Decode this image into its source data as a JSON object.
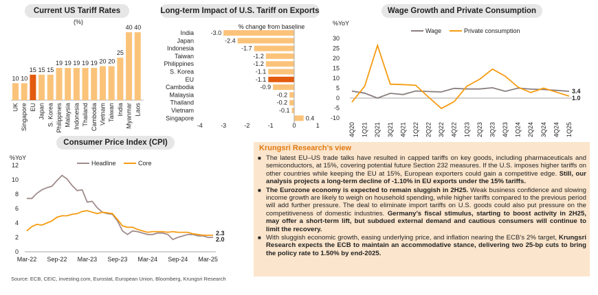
{
  "tariff": {
    "title": "Current US Tariff Rates",
    "unit": "(%)"
  },
  "impact": {
    "title": "Long-term Impact of U.S. Tariff on Exports",
    "subtitle": "% change from baseline"
  },
  "wage": {
    "title": "Wage Growth and Private Consumption",
    "yunit": "%YoY"
  },
  "cpi": {
    "title": "Consumer Price Index (CPI)",
    "yunit": "%YoY"
  },
  "view": {
    "title": "Krungsri Research’s view",
    "b1": "The latest EU–US trade talks have resulted in capped tariffs on key goods, including pharmaceuticals and semiconductors, at 15%, covering potential future Section 232 measures. If the U.S. imposes higher tariffs on other countries while keeping the EU at 15%, European exporters could gain a competitive edge.",
    "b1_bold": "Still, our analysis projects a long-term decline of -1.10% in EU exports under the 15% tariffs.",
    "b2_bold1": "The Eurozone economy is expected to remain sluggish in 2H25.",
    "b2": "Weak business confidence and slowing income growth are likely to weigh on household spending, while higher tariffs compared to the previous period will add further pressure. The deal to eliminate import tariffs on U.S. goods could also put pressure on the competitiveness of domestic industries.",
    "b2_bold2": "Germany’s fiscal stimulus, starting to boost activity in 2H25, may offer a short-term lift, but subdued external demand and cautious consumers will continue to limit the recovery.",
    "b3": "With sluggish economic growth, easing underlying price, and inflation nearing the ECB’s 2% target,",
    "b3_bold": "Krungsri Research expects the ECB to maintain an accommodative stance, delivering two 25-bp cuts to bring the policy rate to 1.50% by end-2025."
  },
  "source": "Source: ECB, CEIC, investing.com, Eurostat, European Union, Bloomberg, Krungsri Research",
  "chart_data": [
    {
      "type": "bar",
      "title": "Current US Tariff Rates",
      "ylabel": "(%)",
      "categories": [
        "UK",
        "Singapore",
        "EU",
        "Japan",
        "S. Korea",
        "Philippines",
        "Malaysia",
        "Indonesia",
        "Thailand",
        "Cambodia",
        "Vietnam",
        "Taiwan",
        "India",
        "Myanmar",
        "Laos"
      ],
      "values": [
        10,
        10,
        15,
        15,
        15,
        19,
        19,
        19,
        19,
        19,
        20,
        20,
        25,
        40,
        40
      ],
      "highlight": "EU",
      "ylim": [
        0,
        40
      ]
    },
    {
      "type": "bar",
      "orientation": "horizontal",
      "title": "Long-term Impact of U.S. Tariff on Exports",
      "xlabel": "% change from baseline",
      "categories": [
        "India",
        "Japan",
        "Indonesia",
        "Taiwan",
        "Philippines",
        "S. Korea",
        "EU",
        "Cambodia",
        "Malaysia",
        "Thailand",
        "Vietnam",
        "Singapore"
      ],
      "values": [
        -3.0,
        -2.4,
        -1.7,
        -1.2,
        -1.2,
        -1.1,
        -1.1,
        -0.9,
        -0.2,
        -0.2,
        -0.1,
        0.4
      ],
      "labels": [
        "-3.0",
        "-2.4",
        "-1.7",
        "-1.2",
        "-1.2",
        "-1.1",
        "-1.1",
        "-0.9",
        "-0.2",
        "-0.2",
        "-0.1",
        "0.4"
      ],
      "highlight": "EU",
      "xticks": [
        -4,
        -3,
        -2,
        -1,
        0,
        1
      ],
      "xlim": [
        -4,
        1
      ]
    },
    {
      "type": "line",
      "title": "Wage Growth and Private Consumption",
      "ylabel": "%YoY",
      "x": [
        "4Q20",
        "1Q21",
        "2Q21",
        "3Q21",
        "4Q21",
        "1Q22",
        "2Q22",
        "3Q22",
        "4Q22",
        "1Q23",
        "2Q23",
        "3Q23",
        "4Q23",
        "1Q24",
        "2Q24",
        "3Q24",
        "4Q24",
        "1Q25"
      ],
      "xticks": [
        "4Q20",
        "1Q21",
        "2Q21",
        "3Q21",
        "4Q21",
        "1Q22",
        "2Q22",
        "3Q22",
        "4Q22",
        "1Q23",
        "2Q23",
        "3Q23",
        "4Q23",
        "1Q24",
        "2Q24",
        "3Q24",
        "4Q24",
        "1Q25"
      ],
      "series": [
        {
          "name": "Wage",
          "color": "#8a7e7e",
          "values": [
            3.5,
            2.5,
            0.0,
            2.4,
            1.8,
            3.6,
            3.3,
            3.1,
            4.9,
            4.6,
            4.6,
            5.2,
            3.4,
            5.0,
            4.5,
            4.3,
            3.9,
            3.4
          ],
          "end_label": "3.4"
        },
        {
          "name": "Private consumption",
          "color": "#f59b10",
          "values": [
            -2.0,
            6.0,
            26.5,
            7.0,
            6.8,
            6.4,
            0.5,
            -5.2,
            -1.8,
            6.0,
            9.5,
            14.6,
            11.0,
            5.5,
            2.8,
            5.0,
            3.0,
            1.0
          ],
          "end_label": "1.0"
        }
      ],
      "yticks": [
        -10,
        -5,
        0,
        5,
        10,
        15,
        20,
        25,
        30
      ],
      "ylim": [
        -10,
        30
      ]
    },
    {
      "type": "line",
      "title": "Consumer Price Index (CPI)",
      "ylabel": "%YoY",
      "xticks": [
        "Mar-22",
        "Sep-22",
        "Mar-23",
        "Sep-23",
        "Mar-24",
        "Sep-24",
        "Mar-25"
      ],
      "series": [
        {
          "name": "Headline",
          "color": "#a08b8b",
          "values": [
            7.4,
            7.4,
            8.1,
            8.6,
            8.9,
            9.1,
            9.9,
            10.6,
            10.1,
            9.2,
            8.5,
            8.6,
            6.9,
            7.0,
            6.1,
            5.5,
            5.3,
            5.2,
            4.3,
            2.9,
            2.4,
            2.9,
            2.8,
            2.6,
            2.4,
            2.4,
            2.6,
            2.6,
            2.4,
            1.7,
            2.0,
            2.2,
            2.4,
            2.4,
            2.2,
            2.2,
            2.0,
            2.0
          ],
          "end_label": "2.0"
        },
        {
          "name": "Core",
          "color": "#f59b10",
          "values": [
            2.9,
            3.5,
            3.8,
            3.7,
            4.0,
            4.3,
            4.8,
            5.0,
            5.0,
            5.2,
            5.3,
            5.6,
            5.7,
            5.5,
            5.3,
            5.5,
            5.4,
            5.3,
            4.5,
            3.6,
            3.4,
            3.4,
            3.1,
            2.9,
            2.7,
            2.8,
            2.8,
            2.8,
            2.7,
            2.8,
            2.7,
            2.7,
            2.7,
            2.5,
            2.4,
            2.3,
            2.3,
            2.3
          ],
          "end_label": "2.3"
        }
      ],
      "yticks": [
        0,
        2,
        4,
        6,
        8,
        10,
        12
      ],
      "ylim": [
        0,
        12
      ]
    }
  ]
}
